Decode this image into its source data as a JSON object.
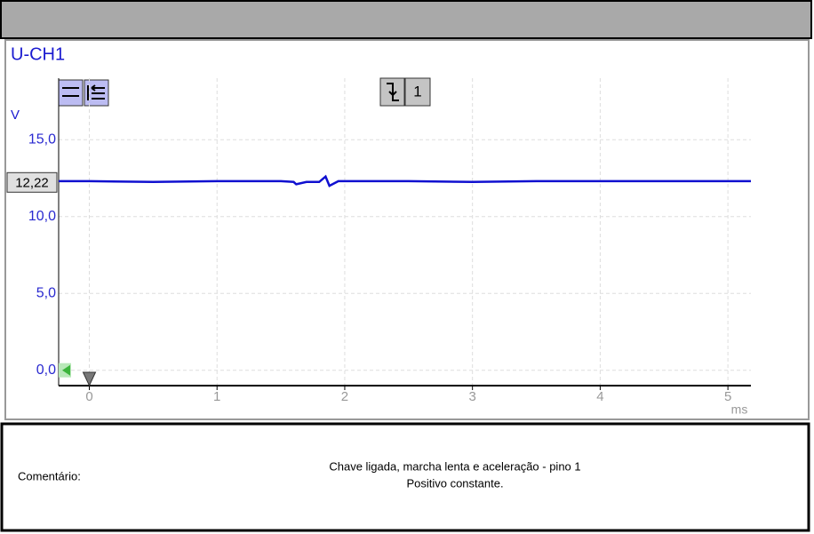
{
  "chart_data": {
    "type": "line",
    "y_unit": "V",
    "x_unit": "ms",
    "xlim": [
      -0.24,
      5.18
    ],
    "xticks": [
      0,
      1,
      2,
      3,
      4,
      5
    ],
    "ylim": [
      -1,
      19
    ],
    "yticks": [
      {
        "value": 0,
        "label": "0,0"
      },
      {
        "value": 5,
        "label": "5,0"
      },
      {
        "value": 10,
        "label": "10,0"
      },
      {
        "value": 15,
        "label": "15,0"
      }
    ],
    "grid": true,
    "cursor": {
      "value": 12.22,
      "label": "12,22"
    },
    "trigger_channel": "1",
    "series": [
      {
        "name": "U-CH1",
        "color": "#1010d0",
        "x": [
          -0.24,
          0,
          0.5,
          1,
          1.5,
          1.6,
          1.62,
          1.7,
          1.8,
          1.85,
          1.88,
          1.95,
          2.5,
          3,
          3.5,
          4,
          4.5,
          5,
          5.18
        ],
        "values": [
          12.3,
          12.3,
          12.25,
          12.3,
          12.3,
          12.25,
          12.1,
          12.25,
          12.25,
          12.6,
          12.0,
          12.3,
          12.3,
          12.25,
          12.3,
          12.3,
          12.3,
          12.3,
          12.3
        ]
      }
    ]
  },
  "comment": {
    "label": "Comentário:",
    "lines": [
      "Chave ligada, marcha lenta e aceleração - pino 1",
      "Positivo constante."
    ]
  }
}
